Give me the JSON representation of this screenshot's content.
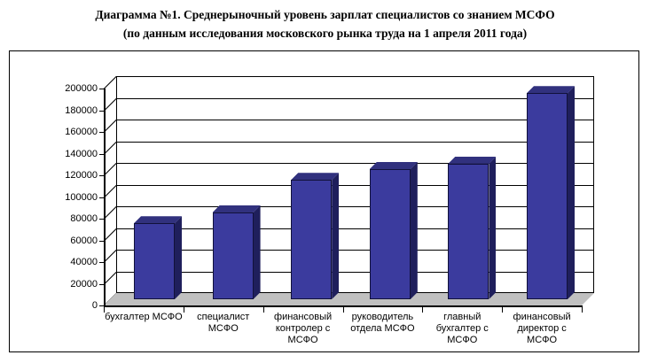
{
  "title": {
    "line1": "Диаграмма №1. Среднерыночный уровень зарплат специалистов со знанием МСФО",
    "line2": "(по данным исследования московского рынка труда на 1 апреля 2011 года)"
  },
  "chart_data": {
    "type": "bar",
    "style": "3d-column",
    "title": "Диаграмма №1. Среднерыночный уровень зарплат специалистов со знанием МСФО (по данным исследования московского рынка труда на 1 апреля 2011 года)",
    "categories": [
      "бухгалтер МСФО",
      "специалист МСФО",
      "финансовый контролер с МСФО",
      "руководитель отдела МСФО",
      "главный бухгалтер с МСФО",
      "финансовый директор с МСФО"
    ],
    "values": [
      70000,
      80000,
      110000,
      120000,
      125000,
      190000
    ],
    "xlabel": "",
    "ylabel": "",
    "ylim": [
      0,
      200000
    ],
    "ytick_step": 20000,
    "ytick_labels": [
      "0",
      "20000",
      "40000",
      "60000",
      "80000",
      "100000",
      "120000",
      "140000",
      "160000",
      "180000",
      "200000"
    ],
    "grid": true,
    "legend": "none",
    "colors": {
      "bar_front": "#3B3B9E",
      "bar_top": "#31317E",
      "bar_side": "#1F1F5C",
      "floor": "#C0C0C0",
      "wall": "#FFFFFF",
      "gridline": "#000000",
      "text": "#000000"
    }
  }
}
